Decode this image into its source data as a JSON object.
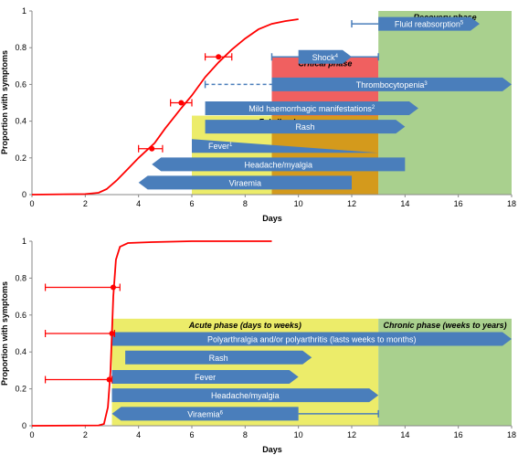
{
  "chart_data": [
    {
      "type": "line",
      "xlabel": "Days",
      "ylabel": "Proportion with symptoms",
      "xlim": [
        0,
        18
      ],
      "ylim": [
        0,
        1
      ],
      "xticks": [
        "0",
        "2",
        "4",
        "6",
        "8",
        "10",
        "12",
        "14",
        "16",
        "18"
      ],
      "yticks": [
        "0",
        "0.2",
        "0.4",
        "0.6",
        "0.8",
        "1"
      ],
      "grid": false,
      "colors": {
        "curve": "#ff0000",
        "febrile": "#ecec6a",
        "critical": "#e8a030",
        "critical_top": "#f06060",
        "recovery": "#a9d08e",
        "arrow": "#4a7ebb"
      },
      "phases": [
        {
          "label": "Febrile phase",
          "x": [
            6,
            13
          ],
          "y": [
            0,
            0.43
          ],
          "fill": "#ecec6a"
        },
        {
          "label": "Critical phase",
          "x": [
            9,
            13
          ],
          "y": [
            0,
            0.75
          ],
          "fill": "#f0a040"
        },
        {
          "label": "Recovery phase",
          "x": [
            13,
            18
          ],
          "y": [
            0,
            1.0
          ],
          "fill": "#a9d08e"
        }
      ],
      "series": [
        {
          "values": [
            [
              0,
              0
            ],
            [
              2,
              0.003
            ],
            [
              2.5,
              0.01
            ],
            [
              2.8,
              0.03
            ],
            [
              3.2,
              0.08
            ],
            [
              3.6,
              0.14
            ],
            [
              4,
              0.2
            ],
            [
              4.6,
              0.28
            ],
            [
              5,
              0.36
            ],
            [
              5.6,
              0.47
            ],
            [
              6,
              0.54
            ],
            [
              6.5,
              0.64
            ],
            [
              7,
              0.72
            ],
            [
              7.5,
              0.79
            ],
            [
              8,
              0.85
            ],
            [
              8.5,
              0.9
            ],
            [
              9,
              0.93
            ],
            [
              9.5,
              0.945
            ],
            [
              10,
              0.955
            ]
          ],
          "markers": [
            {
              "x": 4.5,
              "y": 0.25,
              "xerr": [
                4.0,
                4.9
              ]
            },
            {
              "x": 5.6,
              "y": 0.5,
              "xerr": [
                5.2,
                6.0
              ]
            },
            {
              "x": 7.0,
              "y": 0.75,
              "xerr": [
                6.5,
                7.5
              ]
            }
          ]
        }
      ],
      "arrows": [
        {
          "label": "Fluid reabsorption",
          "sup": "5",
          "x1": 13,
          "x2": 16.8,
          "y": 0.93,
          "whisker_from": 12
        },
        {
          "label": "Shock",
          "sup": "4",
          "x1": 10,
          "x2": 12,
          "y": 0.75,
          "whisker": [
            9,
            13
          ]
        },
        {
          "label": "Thrombocytopenia",
          "sup": "3",
          "x1": 9,
          "x2": 18,
          "y": 0.6,
          "dashed_from": 6.5
        },
        {
          "label": "Mild haemorrhagic manifestations",
          "sup": "2",
          "x1": 6.5,
          "x2": 14.5,
          "y": 0.47
        },
        {
          "label": "Rash",
          "sup": "",
          "x1": 6.5,
          "x2": 14,
          "y": 0.37
        },
        {
          "label": "Fever",
          "sup": "1",
          "x1": 6,
          "x2": 13,
          "y": 0.265,
          "tapered": true
        },
        {
          "label": "Headache/myalgia",
          "sup": "",
          "x1": 4.5,
          "x2": 14,
          "y": 0.165
        },
        {
          "label": "Viraemia",
          "sup": "",
          "x1": 4,
          "x2": 12,
          "y": 0.065
        }
      ]
    },
    {
      "type": "line",
      "xlabel": "Days",
      "ylabel": "Proportion with symptoms",
      "xlim": [
        0,
        18
      ],
      "ylim": [
        0,
        1
      ],
      "xticks": [
        "0",
        "2",
        "4",
        "6",
        "8",
        "10",
        "12",
        "14",
        "16",
        "18"
      ],
      "yticks": [
        "0",
        "0.2",
        "0.4",
        "0.6",
        "0.8",
        "1"
      ],
      "grid": false,
      "colors": {
        "curve": "#ff0000",
        "acute": "#ecec6a",
        "chronic": "#a9d08e",
        "arrow": "#4a7ebb"
      },
      "phases": [
        {
          "label": "Acute phase (days to weeks)",
          "x": [
            3,
            13
          ],
          "y": [
            0,
            0.58
          ],
          "fill": "#ecec6a"
        },
        {
          "label": "Chronic phase (weeks to years)",
          "x": [
            13,
            18
          ],
          "y": [
            0,
            0.58
          ],
          "fill": "#a9d08e"
        }
      ],
      "series": [
        {
          "values": [
            [
              0,
              0
            ],
            [
              2.5,
              0.002
            ],
            [
              2.7,
              0.01
            ],
            [
              2.85,
              0.1
            ],
            [
              2.95,
              0.3
            ],
            [
              3.0,
              0.5
            ],
            [
              3.05,
              0.7
            ],
            [
              3.15,
              0.9
            ],
            [
              3.3,
              0.97
            ],
            [
              3.6,
              0.99
            ],
            [
              4.5,
              0.995
            ],
            [
              6,
              1.0
            ],
            [
              9,
              1.0
            ]
          ],
          "markers": [
            {
              "x": 2.9,
              "y": 0.25,
              "xerr": [
                0.5,
                3.0
              ]
            },
            {
              "x": 3.0,
              "y": 0.5,
              "xerr": [
                0.5,
                3.1
              ]
            },
            {
              "x": 3.05,
              "y": 0.75,
              "xerr": [
                0.5,
                3.3
              ]
            }
          ]
        }
      ],
      "arrows": [
        {
          "label": "Polyarthralgia and/or polyarthritis (lasts weeks to months)",
          "sup": "",
          "x1": 3,
          "x2": 18,
          "y": 0.47
        },
        {
          "label": "Rash",
          "sup": "",
          "x1": 3.5,
          "x2": 10.5,
          "y": 0.37
        },
        {
          "label": "Fever",
          "sup": "",
          "x1": 3,
          "x2": 10,
          "y": 0.265
        },
        {
          "label": "Headache/myalgia",
          "sup": "",
          "x1": 3,
          "x2": 13,
          "y": 0.165
        },
        {
          "label": "Viraemia",
          "sup": "6",
          "x1": 3,
          "x2": 10,
          "y": 0.065,
          "whisker_to": 13
        }
      ]
    }
  ]
}
